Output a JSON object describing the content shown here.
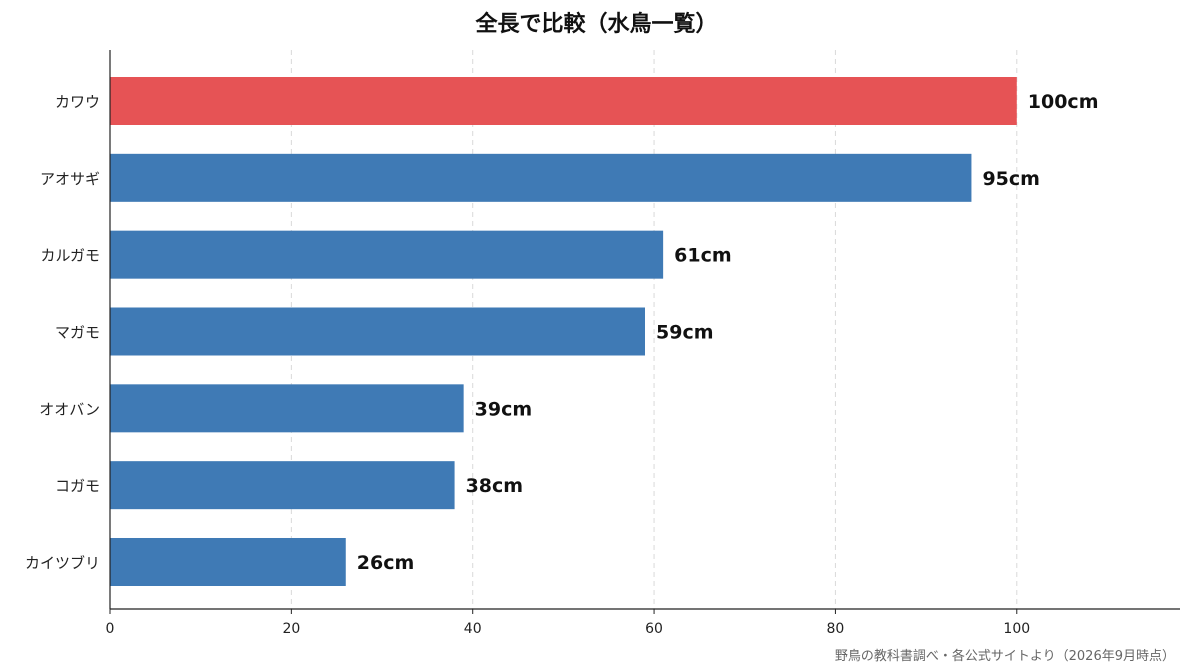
{
  "chart_data": {
    "type": "bar",
    "orientation": "horizontal",
    "title": "全長で比較（水鳥一覧）",
    "categories": [
      "カワウ",
      "アオサギ",
      "カルガモ",
      "マガモ",
      "オオバン",
      "コガモ",
      "カイツブリ"
    ],
    "values": [
      100,
      95,
      61,
      59,
      39,
      38,
      26
    ],
    "data_labels": [
      "100cm",
      "95cm",
      "61cm",
      "59cm",
      "39cm",
      "38cm",
      "26cm"
    ],
    "xlim": [
      0,
      118
    ],
    "xticks": [
      0,
      20,
      40,
      60,
      80,
      100
    ],
    "grid": "vertical-dashed",
    "bar_colors": [
      "#e65355",
      "#3f7ab5",
      "#3f7ab5",
      "#3f7ab5",
      "#3f7ab5",
      "#3f7ab5",
      "#3f7ab5"
    ],
    "highlight_color": "#e65355",
    "base_color": "#3f7ab5",
    "source": "野鳥の教科書調べ・各公式サイトより（2026年9月時点）"
  }
}
